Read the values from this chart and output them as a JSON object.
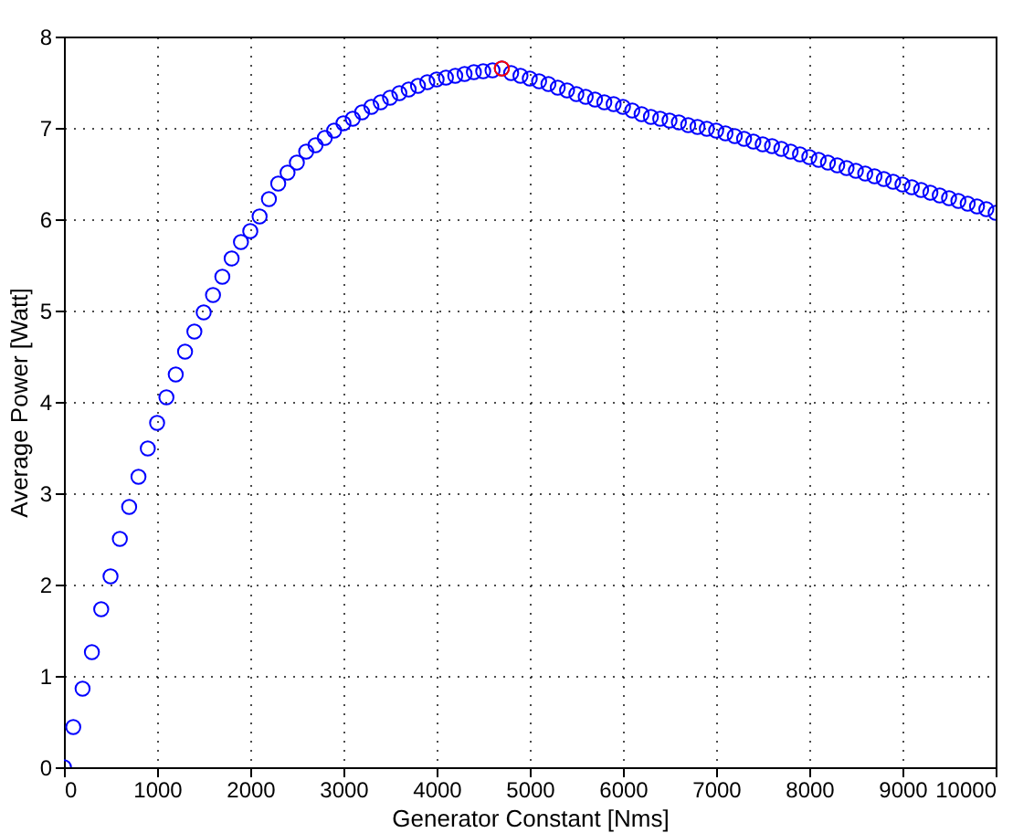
{
  "chart_data": {
    "type": "scatter",
    "xlabel": "Generator Constant [Nms]",
    "ylabel": "Average Power [Watt]",
    "xlim": [
      0,
      10000
    ],
    "ylim": [
      0,
      8
    ],
    "xticks": [
      0,
      1000,
      2000,
      3000,
      4000,
      5000,
      6000,
      7000,
      8000,
      9000,
      10000
    ],
    "yticks": [
      0,
      1,
      2,
      3,
      4,
      5,
      6,
      7,
      8
    ],
    "grid": true,
    "marker": "circle",
    "series": [
      {
        "color": "#0000ff",
        "x": [
          0,
          100,
          200,
          300,
          400,
          500,
          600,
          700,
          800,
          900,
          1000,
          1100,
          1200,
          1300,
          1400,
          1500,
          1600,
          1700,
          1800,
          1900,
          2000,
          2100,
          2200,
          2300,
          2400,
          2500,
          2600,
          2700,
          2800,
          2900,
          3000,
          3100,
          3200,
          3300,
          3400,
          3500,
          3600,
          3700,
          3800,
          3900,
          4000,
          4100,
          4200,
          4300,
          4400,
          4500,
          4600,
          4700,
          4800,
          4900,
          5000,
          5100,
          5200,
          5300,
          5400,
          5500,
          5600,
          5700,
          5800,
          5900,
          6000,
          6100,
          6200,
          6300,
          6400,
          6500,
          6600,
          6700,
          6800,
          6900,
          7000,
          7100,
          7200,
          7300,
          7400,
          7500,
          7600,
          7700,
          7800,
          7900,
          8000,
          8100,
          8200,
          8300,
          8400,
          8500,
          8600,
          8700,
          8800,
          8900,
          9000,
          9100,
          9200,
          9300,
          9400,
          9500,
          9600,
          9700,
          9800,
          9900,
          10000
        ],
        "values": [
          0,
          0.44,
          0.86,
          1.26,
          1.73,
          2.09,
          2.5,
          2.85,
          3.18,
          3.49,
          3.77,
          4.05,
          4.3,
          4.55,
          4.77,
          4.98,
          5.17,
          5.37,
          5.57,
          5.75,
          5.87,
          6.03,
          6.22,
          6.39,
          6.51,
          6.62,
          6.74,
          6.81,
          6.89,
          6.97,
          7.05,
          7.1,
          7.17,
          7.23,
          7.28,
          7.33,
          7.38,
          7.42,
          7.46,
          7.5,
          7.53,
          7.55,
          7.57,
          7.59,
          7.61,
          7.62,
          7.63,
          7.65,
          7.6,
          7.57,
          7.54,
          7.51,
          7.48,
          7.44,
          7.41,
          7.37,
          7.34,
          7.31,
          7.28,
          7.26,
          7.23,
          7.19,
          7.15,
          7.12,
          7.1,
          7.08,
          7.06,
          7.03,
          7.01,
          6.99,
          6.97,
          6.94,
          6.91,
          6.88,
          6.85,
          6.82,
          6.8,
          6.77,
          6.74,
          6.71,
          6.68,
          6.65,
          6.62,
          6.59,
          6.56,
          6.53,
          6.5,
          6.47,
          6.44,
          6.41,
          6.38,
          6.35,
          6.32,
          6.29,
          6.26,
          6.23,
          6.2,
          6.17,
          6.14,
          6.11,
          6.07
        ]
      },
      {
        "color": "#ff0000",
        "x": [
          4700
        ],
        "values": [
          7.65
        ]
      }
    ]
  }
}
